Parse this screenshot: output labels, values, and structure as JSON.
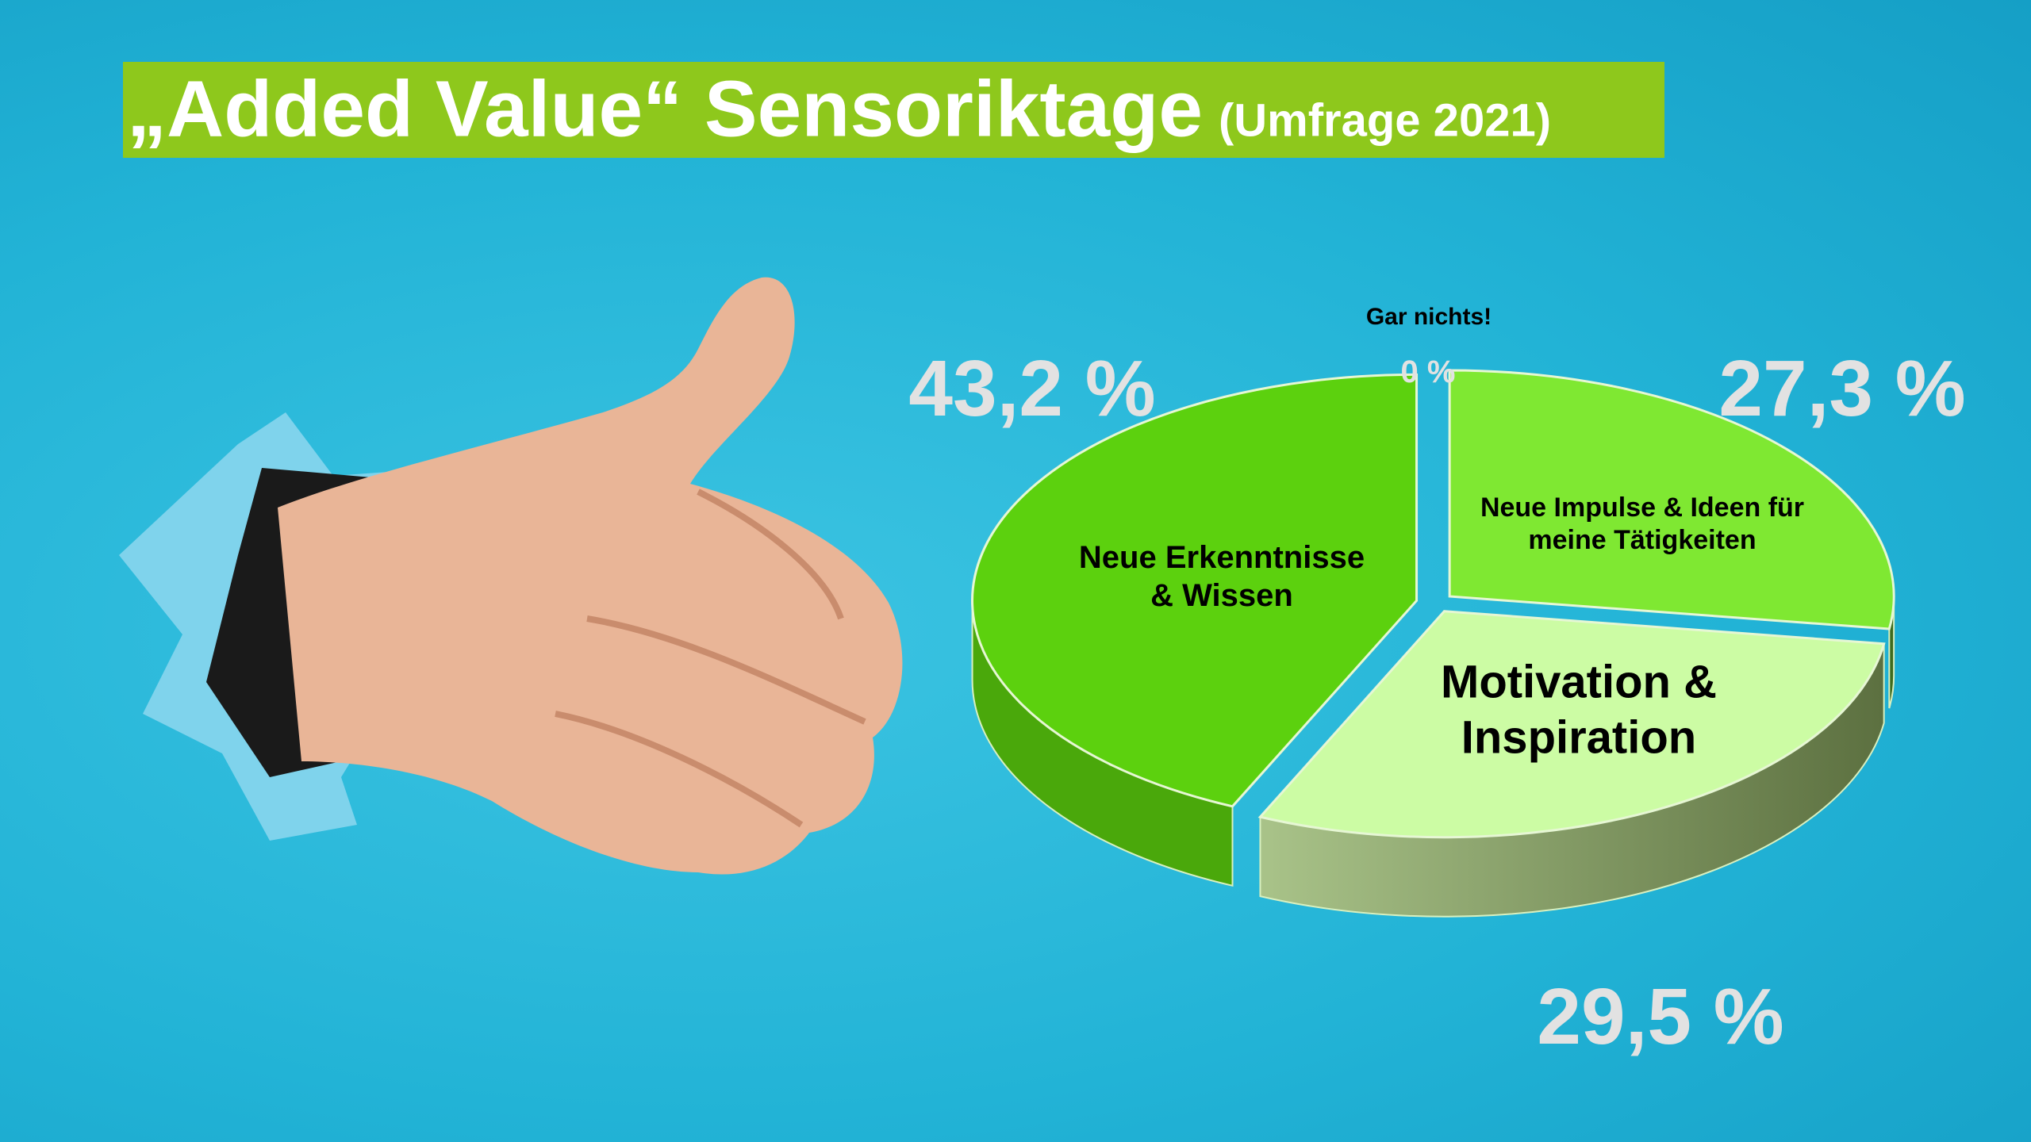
{
  "chart_data": {
    "type": "pie",
    "title": "„Added Value“ Sensoriktage",
    "subtitle": "(Umfrage 2021)",
    "categories": [
      "Gar nichts!",
      "Neue Impulse & Ideen für meine Tätigkeiten",
      "Motivation & Inspiration",
      "Neue Erkenntnisse & Wissen"
    ],
    "values": [
      0,
      27.3,
      29.5,
      43.2
    ],
    "value_labels": [
      "0 %",
      "27,3 %",
      "29,5 %",
      "43,2 %"
    ],
    "colors": [
      "#4caf1a",
      "#7fe832",
      "#ccfca4",
      "#5cd10e"
    ]
  }
}
